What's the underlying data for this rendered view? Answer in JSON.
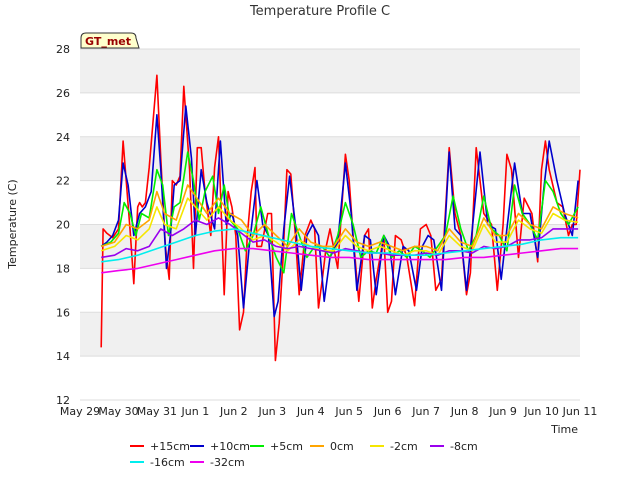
{
  "chart_data": {
    "type": "line",
    "title": "Temperature Profile C",
    "xlabel": "Time",
    "ylabel": "Temperature (C)",
    "ylim": [
      12,
      28
    ],
    "yticks": [
      12,
      14,
      16,
      18,
      20,
      22,
      24,
      26,
      28
    ],
    "xlim": [
      0,
      13
    ],
    "xticks": [
      {
        "x": 0,
        "label": "May 29"
      },
      {
        "x": 1,
        "label": "May 30"
      },
      {
        "x": 2,
        "label": "May 31"
      },
      {
        "x": 3,
        "label": "Jun 1"
      },
      {
        "x": 4,
        "label": "Jun 2"
      },
      {
        "x": 5,
        "label": "Jun 3"
      },
      {
        "x": 6,
        "label": "Jun 4"
      },
      {
        "x": 7,
        "label": "Jun 5"
      },
      {
        "x": 8,
        "label": "Jun 6"
      },
      {
        "x": 9,
        "label": "Jun 7"
      },
      {
        "x": 10,
        "label": "Jun 8"
      },
      {
        "x": 11,
        "label": "Jun 9"
      },
      {
        "x": 12,
        "label": "Jun 10"
      },
      {
        "x": 13,
        "label": "Jun 11"
      }
    ],
    "grid": true,
    "background_bands": true,
    "legend_position": "bottom",
    "badge": "GT_met",
    "series": [
      {
        "name": "+15cm",
        "color": "#ff0000",
        "x": [
          0.55,
          0.6,
          0.7,
          0.85,
          1.0,
          1.12,
          1.2,
          1.3,
          1.4,
          1.5,
          1.55,
          1.62,
          1.7,
          1.8,
          2.0,
          2.1,
          2.22,
          2.32,
          2.4,
          2.5,
          2.6,
          2.7,
          2.85,
          2.95,
          3.05,
          3.15,
          3.25,
          3.4,
          3.5,
          3.6,
          3.75,
          3.85,
          3.95,
          4.05,
          4.15,
          4.25,
          4.35,
          4.45,
          4.55,
          4.6,
          4.72,
          4.88,
          4.98,
          5.08,
          5.18,
          5.28,
          5.38,
          5.48,
          5.6,
          5.7,
          5.85,
          6.0,
          6.1,
          6.2,
          6.3,
          6.4,
          6.5,
          6.7,
          6.9,
          7.0,
          7.1,
          7.25,
          7.4,
          7.5,
          7.6,
          7.7,
          7.9,
          8.0,
          8.1,
          8.2,
          8.35,
          8.5,
          8.7,
          8.85,
          9.0,
          9.12,
          9.25,
          9.4,
          9.6,
          9.75,
          9.9,
          10.05,
          10.15,
          10.3,
          10.5,
          10.7,
          10.85,
          11.0,
          11.1,
          11.22,
          11.4,
          11.55,
          11.75,
          11.9,
          12.0,
          12.1,
          12.2,
          12.4,
          12.55,
          12.7,
          12.8,
          12.9,
          13.0
        ],
        "y": [
          14.4,
          19.8,
          19.6,
          19.4,
          19.8,
          23.8,
          22.0,
          19.8,
          17.3,
          20.8,
          21.0,
          20.8,
          21.0,
          22.6,
          26.8,
          23.0,
          19.0,
          17.5,
          22.0,
          21.8,
          22.2,
          26.3,
          22.5,
          18.0,
          23.5,
          23.5,
          21.5,
          19.5,
          22.6,
          24.0,
          16.8,
          21.5,
          20.8,
          19.5,
          15.2,
          16.0,
          19.5,
          21.5,
          22.6,
          19.0,
          19.0,
          20.5,
          20.5,
          13.8,
          15.5,
          18.5,
          22.5,
          22.3,
          19.5,
          16.8,
          19.5,
          20.2,
          19.8,
          16.2,
          17.5,
          19.0,
          19.8,
          18.0,
          23.2,
          22.0,
          19.5,
          16.5,
          19.5,
          19.8,
          16.2,
          17.5,
          19.5,
          16.0,
          16.5,
          19.5,
          19.3,
          18.5,
          16.3,
          19.8,
          20.0,
          19.5,
          17.0,
          17.5,
          23.5,
          20.5,
          19.5,
          16.8,
          17.8,
          23.5,
          20.5,
          20.0,
          17.0,
          20.0,
          23.2,
          22.5,
          18.5,
          21.2,
          20.5,
          18.3,
          22.5,
          23.8,
          22.5,
          21.0,
          20.8,
          19.5,
          20.0,
          20.0,
          22.5
        ]
      },
      {
        "name": "+10cm",
        "color": "#0000cc",
        "x": [
          0.55,
          0.7,
          0.85,
          1.0,
          1.12,
          1.25,
          1.4,
          1.55,
          1.7,
          1.85,
          2.0,
          2.1,
          2.25,
          2.35,
          2.45,
          2.6,
          2.75,
          2.9,
          3.0,
          3.15,
          3.3,
          3.5,
          3.65,
          3.8,
          3.95,
          4.1,
          4.25,
          4.4,
          4.6,
          4.75,
          4.9,
          5.05,
          5.15,
          5.3,
          5.45,
          5.6,
          5.75,
          5.9,
          6.05,
          6.2,
          6.35,
          6.5,
          6.7,
          6.9,
          7.05,
          7.2,
          7.4,
          7.55,
          7.7,
          7.9,
          8.05,
          8.2,
          8.4,
          8.55,
          8.75,
          8.9,
          9.05,
          9.2,
          9.4,
          9.6,
          9.75,
          9.9,
          10.05,
          10.2,
          10.4,
          10.6,
          10.8,
          10.95,
          11.1,
          11.3,
          11.5,
          11.7,
          11.9,
          12.05,
          12.2,
          12.4,
          12.6,
          12.8,
          12.95
        ],
        "y": [
          19.0,
          19.2,
          19.5,
          20.2,
          22.8,
          21.8,
          19.5,
          20.5,
          20.8,
          21.5,
          25.0,
          22.5,
          18.0,
          19.5,
          21.8,
          22.0,
          25.4,
          23.0,
          19.5,
          22.5,
          21.0,
          19.8,
          23.8,
          20.0,
          20.5,
          19.5,
          16.2,
          19.0,
          22.0,
          20.0,
          19.5,
          15.8,
          16.5,
          19.8,
          22.2,
          20.0,
          17.0,
          19.5,
          20.0,
          19.5,
          16.5,
          18.5,
          19.2,
          22.8,
          20.5,
          17.0,
          19.5,
          19.3,
          16.8,
          19.5,
          19.0,
          16.8,
          19.0,
          18.8,
          17.0,
          19.0,
          19.5,
          19.3,
          17.0,
          23.3,
          19.8,
          19.5,
          17.0,
          19.8,
          23.3,
          20.0,
          19.8,
          17.5,
          19.8,
          22.8,
          20.5,
          20.5,
          18.5,
          21.5,
          23.8,
          22.0,
          20.5,
          19.5,
          22.0
        ]
      },
      {
        "name": "+5cm",
        "color": "#00ee00",
        "x": [
          0.55,
          0.8,
          1.0,
          1.15,
          1.3,
          1.45,
          1.6,
          1.8,
          2.0,
          2.15,
          2.3,
          2.45,
          2.6,
          2.8,
          2.95,
          3.1,
          3.25,
          3.45,
          3.6,
          3.75,
          3.9,
          4.1,
          4.3,
          4.5,
          4.7,
          4.9,
          5.1,
          5.3,
          5.5,
          5.7,
          5.9,
          6.1,
          6.3,
          6.5,
          6.7,
          6.9,
          7.1,
          7.3,
          7.5,
          7.7,
          7.9,
          8.1,
          8.3,
          8.5,
          8.7,
          8.9,
          9.1,
          9.3,
          9.5,
          9.7,
          9.9,
          10.1,
          10.3,
          10.5,
          10.7,
          10.9,
          11.1,
          11.3,
          11.5,
          11.7,
          11.9,
          12.1,
          12.3,
          12.5,
          12.7,
          12.95
        ],
        "y": [
          19.0,
          19.2,
          19.6,
          21.0,
          20.5,
          19.5,
          20.5,
          20.3,
          22.5,
          21.8,
          19.5,
          20.8,
          21.0,
          23.3,
          22.0,
          20.2,
          21.5,
          22.2,
          20.5,
          21.8,
          20.2,
          19.8,
          18.8,
          19.5,
          20.8,
          19.5,
          18.5,
          17.8,
          20.5,
          19.5,
          18.5,
          19.0,
          19.0,
          18.5,
          19.5,
          21.0,
          20.0,
          18.5,
          18.8,
          18.7,
          19.5,
          18.5,
          18.8,
          18.5,
          19.0,
          18.8,
          18.5,
          19.0,
          19.5,
          21.3,
          19.8,
          18.8,
          19.5,
          21.3,
          19.8,
          19.5,
          18.8,
          21.8,
          20.5,
          20.0,
          19.3,
          22.0,
          21.5,
          20.5,
          20.0,
          20.8
        ]
      },
      {
        "name": "0cm",
        "color": "#ffa500",
        "x": [
          0.55,
          0.9,
          1.2,
          1.5,
          1.8,
          2.0,
          2.2,
          2.5,
          2.8,
          3.0,
          3.3,
          3.6,
          3.9,
          4.2,
          4.5,
          4.8,
          5.1,
          5.4,
          5.7,
          6.0,
          6.3,
          6.6,
          6.9,
          7.2,
          7.5,
          7.8,
          8.1,
          8.4,
          8.7,
          9.0,
          9.3,
          9.6,
          9.9,
          10.2,
          10.5,
          10.8,
          11.1,
          11.4,
          11.7,
          12.0,
          12.3,
          12.6,
          12.95
        ],
        "y": [
          19.0,
          19.2,
          20.0,
          19.8,
          20.2,
          21.5,
          20.5,
          20.2,
          21.8,
          21.3,
          20.5,
          21.2,
          20.5,
          20.2,
          19.5,
          20.0,
          19.5,
          19.0,
          19.8,
          19.2,
          19.0,
          19.0,
          19.8,
          19.2,
          19.0,
          19.2,
          19.0,
          18.8,
          19.0,
          19.0,
          18.8,
          19.8,
          19.2,
          19.0,
          20.3,
          19.5,
          19.5,
          20.5,
          20.0,
          19.8,
          20.8,
          20.5,
          20.3
        ]
      },
      {
        "name": "-2cm",
        "color": "#f5e600",
        "x": [
          0.55,
          0.9,
          1.2,
          1.5,
          1.8,
          2.0,
          2.2,
          2.5,
          2.8,
          3.0,
          3.3,
          3.6,
          3.9,
          4.2,
          4.5,
          4.8,
          5.1,
          5.4,
          5.7,
          6.0,
          6.3,
          6.6,
          6.9,
          7.2,
          7.5,
          7.8,
          8.1,
          8.4,
          8.7,
          9.0,
          9.3,
          9.6,
          9.9,
          10.2,
          10.5,
          10.8,
          11.1,
          11.4,
          11.7,
          12.0,
          12.3,
          12.6,
          12.95
        ],
        "y": [
          18.8,
          19.0,
          19.5,
          19.3,
          19.8,
          20.8,
          20.0,
          19.8,
          21.2,
          20.8,
          20.2,
          20.8,
          20.2,
          19.8,
          19.3,
          19.5,
          19.2,
          18.8,
          19.3,
          19.0,
          18.8,
          18.8,
          19.5,
          19.0,
          18.8,
          19.0,
          18.8,
          18.6,
          18.8,
          18.8,
          18.6,
          19.5,
          19.0,
          18.8,
          20.0,
          19.2,
          19.2,
          20.2,
          19.8,
          19.6,
          20.5,
          20.2,
          20.1
        ]
      },
      {
        "name": "-8cm",
        "color": "#9900ee",
        "x": [
          0.55,
          0.9,
          1.2,
          1.5,
          1.8,
          2.1,
          2.4,
          2.7,
          3.0,
          3.3,
          3.6,
          3.9,
          4.2,
          4.5,
          4.8,
          5.1,
          5.4,
          5.7,
          6.0,
          6.3,
          6.6,
          6.9,
          7.2,
          7.5,
          7.8,
          8.1,
          8.4,
          8.7,
          9.0,
          9.3,
          9.6,
          9.9,
          10.2,
          10.5,
          10.8,
          11.1,
          11.4,
          11.7,
          12.0,
          12.3,
          12.6,
          12.95
        ],
        "y": [
          18.5,
          18.6,
          18.9,
          18.8,
          19.0,
          19.8,
          19.5,
          19.8,
          20.2,
          20.0,
          20.3,
          20.0,
          19.6,
          19.2,
          19.3,
          19.0,
          18.9,
          19.0,
          18.9,
          18.8,
          18.7,
          18.9,
          18.8,
          18.7,
          18.7,
          18.6,
          18.6,
          18.6,
          18.7,
          18.6,
          18.8,
          18.8,
          18.7,
          19.0,
          18.9,
          19.0,
          19.3,
          19.3,
          19.4,
          19.8,
          19.8,
          19.8
        ]
      },
      {
        "name": "-16cm",
        "color": "#00eeee",
        "x": [
          0.55,
          1.0,
          1.5,
          2.0,
          2.5,
          3.0,
          3.5,
          4.0,
          4.5,
          5.0,
          5.5,
          6.0,
          6.5,
          7.0,
          7.5,
          8.0,
          8.5,
          9.0,
          9.5,
          10.0,
          10.5,
          11.0,
          11.5,
          12.0,
          12.5,
          12.95
        ],
        "y": [
          18.3,
          18.4,
          18.6,
          18.9,
          19.2,
          19.5,
          19.7,
          19.8,
          19.6,
          19.4,
          19.2,
          19.0,
          18.9,
          18.8,
          18.7,
          18.7,
          18.6,
          18.6,
          18.7,
          18.8,
          18.9,
          19.0,
          19.1,
          19.3,
          19.4,
          19.4
        ]
      },
      {
        "name": "-32cm",
        "color": "#ee00ee",
        "x": [
          0.55,
          1.0,
          1.5,
          2.0,
          2.5,
          3.0,
          3.5,
          4.0,
          4.5,
          5.0,
          5.5,
          6.0,
          6.5,
          7.0,
          7.5,
          8.0,
          8.5,
          9.0,
          9.5,
          10.0,
          10.5,
          11.0,
          11.5,
          12.0,
          12.5,
          12.95
        ],
        "y": [
          17.8,
          17.9,
          18.0,
          18.2,
          18.4,
          18.6,
          18.8,
          18.9,
          18.9,
          18.8,
          18.7,
          18.6,
          18.5,
          18.5,
          18.4,
          18.4,
          18.4,
          18.4,
          18.4,
          18.5,
          18.5,
          18.6,
          18.7,
          18.8,
          18.9,
          18.9
        ]
      }
    ]
  }
}
